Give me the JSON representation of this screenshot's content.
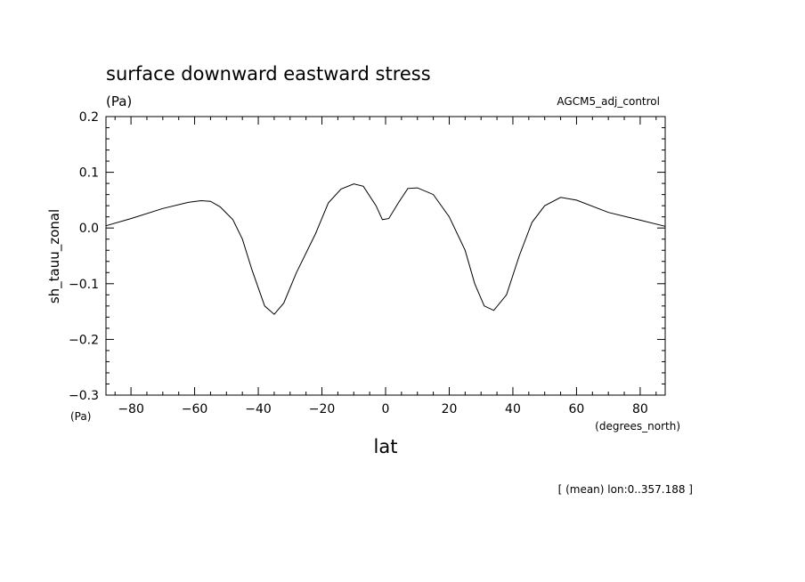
{
  "chart_data": {
    "type": "line",
    "title": "surface downward eastward stress",
    "units_label": "(Pa)",
    "experiment": "AGCM5_adj_control",
    "ylabel": "sh_tauu_zonal",
    "xlabel": "lat",
    "x_units": "(degrees_north)",
    "y_units": "(Pa)",
    "footnote": "[ (mean) lon:0..357.188 ]",
    "xlim": [
      -87.86,
      87.86
    ],
    "ylim": [
      -0.3,
      0.2
    ],
    "x_ticks": [
      -80,
      -60,
      -40,
      -20,
      0,
      20,
      40,
      60,
      80
    ],
    "x_tick_labels": [
      "−80",
      "−60",
      "−40",
      "−20",
      "0",
      "20",
      "40",
      "60",
      "80"
    ],
    "y_ticks": [
      0.2,
      0.1,
      0.0,
      -0.1,
      -0.2,
      -0.3
    ],
    "y_tick_labels": [
      "0.2",
      "0.1",
      "0.0",
      "−0.1",
      "−0.2",
      "−0.3"
    ],
    "grid": false,
    "series": [
      {
        "x": [
          -87.86,
          -80,
          -70,
          -62,
          -58,
          -55,
          -52,
          -48,
          -45,
          -42,
          -38,
          -35,
          -32,
          -28,
          -22,
          -18,
          -14,
          -10,
          -7,
          -3,
          -1,
          1,
          4,
          7,
          10,
          15,
          20,
          25,
          28,
          31,
          34,
          38,
          42,
          46,
          50,
          55,
          60,
          70,
          80,
          87.86
        ],
        "y": [
          0.004,
          0.017,
          0.035,
          0.046,
          0.049,
          0.048,
          0.038,
          0.015,
          -0.02,
          -0.075,
          -0.14,
          -0.155,
          -0.135,
          -0.08,
          -0.01,
          0.045,
          0.07,
          0.079,
          0.075,
          0.04,
          0.015,
          0.017,
          0.045,
          0.071,
          0.072,
          0.06,
          0.02,
          -0.04,
          -0.1,
          -0.14,
          -0.148,
          -0.12,
          -0.05,
          0.01,
          0.04,
          0.055,
          0.05,
          0.028,
          0.014,
          0.003
        ]
      }
    ]
  }
}
